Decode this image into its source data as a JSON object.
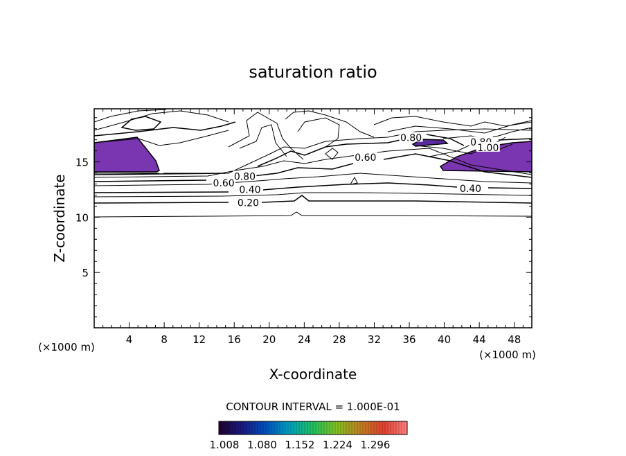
{
  "chart_data": {
    "type": "contour",
    "title": "saturation ratio",
    "xlabel": "X-coordinate",
    "ylabel": "Z-coordinate",
    "x_unit_label": "(×1000 m)",
    "y_unit_label": "(×1000 m)",
    "xlim": [
      0,
      50
    ],
    "ylim": [
      0,
      19.8
    ],
    "x_ticks": [
      4,
      8,
      12,
      16,
      20,
      24,
      28,
      32,
      36,
      40,
      44,
      48
    ],
    "y_ticks": [
      5,
      10,
      15
    ],
    "contour_interval_label": "CONTOUR INTERVAL = 1.000E-01",
    "contour_labels": [
      {
        "text": "0.20",
        "x": 17.6,
        "z": 11.3
      },
      {
        "text": "0.40",
        "x": 17.8,
        "z": 12.5
      },
      {
        "text": "0.40",
        "x": 43.0,
        "z": 12.6
      },
      {
        "text": "0.60",
        "x": 14.8,
        "z": 13.1
      },
      {
        "text": "0.80",
        "x": 17.2,
        "z": 13.7
      },
      {
        "text": "0.60",
        "x": 31.0,
        "z": 15.4
      },
      {
        "text": "0.80",
        "x": 36.2,
        "z": 17.2
      },
      {
        "text": "0.80",
        "x": 44.2,
        "z": 16.8
      },
      {
        "text": "1.00",
        "x": 45.0,
        "z": 16.3
      }
    ],
    "supersaturated_regions": [
      {
        "name": "left",
        "x_range": [
          0,
          7.6
        ],
        "z_range": [
          14.0,
          17.2
        ]
      },
      {
        "name": "center",
        "x_range": [
          36.5,
          40.0
        ],
        "z_range": [
          16.6,
          17.1
        ]
      },
      {
        "name": "right",
        "x_range": [
          39.5,
          50
        ],
        "z_range": [
          14.0,
          17.2
        ]
      }
    ],
    "colorbar": {
      "ticks": [
        "1.008",
        "1.080",
        "1.152",
        "1.224",
        "1.296"
      ],
      "range": [
        1.008,
        1.296
      ],
      "colors": [
        "#200030",
        "#1a1a80",
        "#0050c0",
        "#00a0c0",
        "#20c060",
        "#80c020",
        "#c08020",
        "#e04030",
        "#ff8080"
      ]
    },
    "region_fill_color": "#7a35b0",
    "region_fill_color_2": "#5a2aa0"
  }
}
